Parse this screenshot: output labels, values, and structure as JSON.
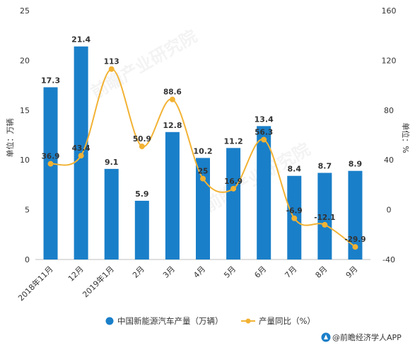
{
  "chart_data": {
    "type": "bar",
    "categories": [
      "2018年11月",
      "12月",
      "2019年1月",
      "2月",
      "3月",
      "4月",
      "5月",
      "6月",
      "7月",
      "8月",
      "9月"
    ],
    "series": [
      {
        "name": "中国新能源汽车产量（万辆）",
        "type": "bar",
        "axis": "left",
        "color": "#1a7fc9",
        "values": [
          17.3,
          21.4,
          9.1,
          5.9,
          12.8,
          10.2,
          11.2,
          13.4,
          8.4,
          8.7,
          8.9
        ]
      },
      {
        "name": "产量同比（%）",
        "type": "line",
        "axis": "right",
        "color": "#f2b233",
        "values": [
          36.9,
          43.4,
          113,
          50.9,
          88.6,
          25,
          16.9,
          56.3,
          -6.9,
          -12.1,
          -29.9
        ]
      }
    ],
    "ylabel": "单位：万辆",
    "ylabel_right": "单位：%",
    "ylim": [
      0,
      25
    ],
    "yticks": [
      0,
      5,
      10,
      15,
      20,
      25
    ],
    "ylim_right": [
      -40,
      160
    ],
    "yticks_right": [
      -40,
      0,
      40,
      80,
      120,
      160
    ],
    "grid": false,
    "legend_position": "bottom"
  },
  "source": "@前瞻经济学人APP",
  "watermark": "前瞻产业研究院",
  "icons": {
    "source_logo": "qianzhan-logo-icon",
    "line_legend": "line-marker-icon",
    "bar_legend": "bar-marker-icon"
  }
}
